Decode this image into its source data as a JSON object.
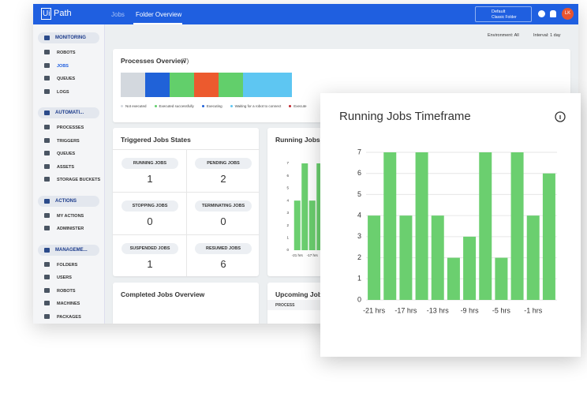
{
  "header": {
    "logo_box": "Ui",
    "logo": "Path",
    "tabs": [
      "Jobs",
      "Folder Overview"
    ],
    "folder_name": "Default",
    "folder_type": "Classic Folder",
    "avatar": "LK"
  },
  "sidebar": [
    {
      "title": "MONITORING",
      "items": [
        "ROBOTS",
        "JOBS",
        "QUEUES",
        "LOGS"
      ]
    },
    {
      "title": "AUTOMATI...",
      "items": [
        "PROCESSES",
        "TRIGGERS",
        "QUEUES",
        "ASSETS",
        "STORAGE BUCKETS"
      ]
    },
    {
      "title": "ACTIONS",
      "items": [
        "MY ACTIONS",
        "ADMINISTER"
      ]
    },
    {
      "title": "MANAGEME...",
      "items": [
        "FOLDERS",
        "USERS",
        "ROBOTS",
        "MACHINES",
        "PACKAGES"
      ]
    }
  ],
  "filters": [
    "Environment: All",
    "Interval: 1 day"
  ],
  "processes_overview": {
    "title": "Processes Overview",
    "count": "(7)",
    "legend": [
      "Not executed",
      "Executed successfully",
      "Executing",
      "Waiting for a robot to connect",
      "Execute"
    ]
  },
  "triggered_jobs": {
    "title": "Triggered Jobs States",
    "states": [
      {
        "label": "RUNNING JOBS",
        "count": 1
      },
      {
        "label": "PENDING JOBS",
        "count": 2
      },
      {
        "label": "STOPPING JOBS",
        "count": 0
      },
      {
        "label": "TERMINATING JOBS",
        "count": 0
      },
      {
        "label": "SUSPENDED JOBS",
        "count": 1
      },
      {
        "label": "RESUMED JOBS",
        "count": 6
      }
    ]
  },
  "completed_jobs": {
    "title": "Completed Jobs Overview"
  },
  "upcoming_jobs": {
    "title": "Upcoming Jobs",
    "column": "PROCESS"
  },
  "chart_data": {
    "type": "bar",
    "title": "Running Jobs Timeframe",
    "categories": [
      "-21 hrs",
      null,
      "-17 hrs",
      null,
      "-13 hrs",
      null,
      "-9 hrs",
      null,
      "-5 hrs",
      null,
      "-1 hrs",
      null
    ],
    "values": [
      4,
      7,
      4,
      7,
      4,
      2,
      3,
      7,
      2,
      7,
      4,
      6
    ],
    "color": "#6bcf6f",
    "ylim": [
      0,
      7
    ],
    "yticks": [
      0,
      1,
      2,
      3,
      4,
      5,
      6,
      7
    ],
    "grid": true
  }
}
